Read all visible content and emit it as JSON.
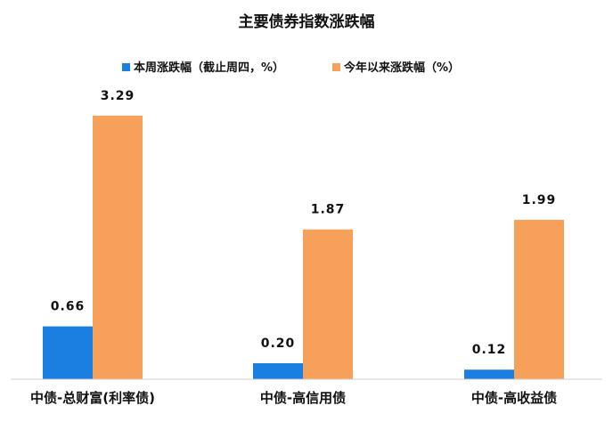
{
  "chart_data": {
    "type": "bar",
    "title": "主要债券指数涨跌幅",
    "categories": [
      "中债-总财富(利率债)",
      "中债-高信用债",
      "中债-高收益债"
    ],
    "series": [
      {
        "name": "本周涨跌幅（截止周四，%）",
        "color": "#1a7fe0",
        "values": [
          0.66,
          0.2,
          0.12
        ]
      },
      {
        "name": "今年以来涨跌幅（%）",
        "color": "#f6a05a",
        "values": [
          3.29,
          1.87,
          1.99
        ]
      }
    ],
    "value_labels": [
      [
        "0.66",
        "0.20",
        "0.12"
      ],
      [
        "3.29",
        "1.87",
        "1.99"
      ]
    ],
    "ylim": [
      0,
      3.5
    ],
    "grid": false,
    "legend_position": "top-center",
    "xlabel": "",
    "ylabel": ""
  }
}
